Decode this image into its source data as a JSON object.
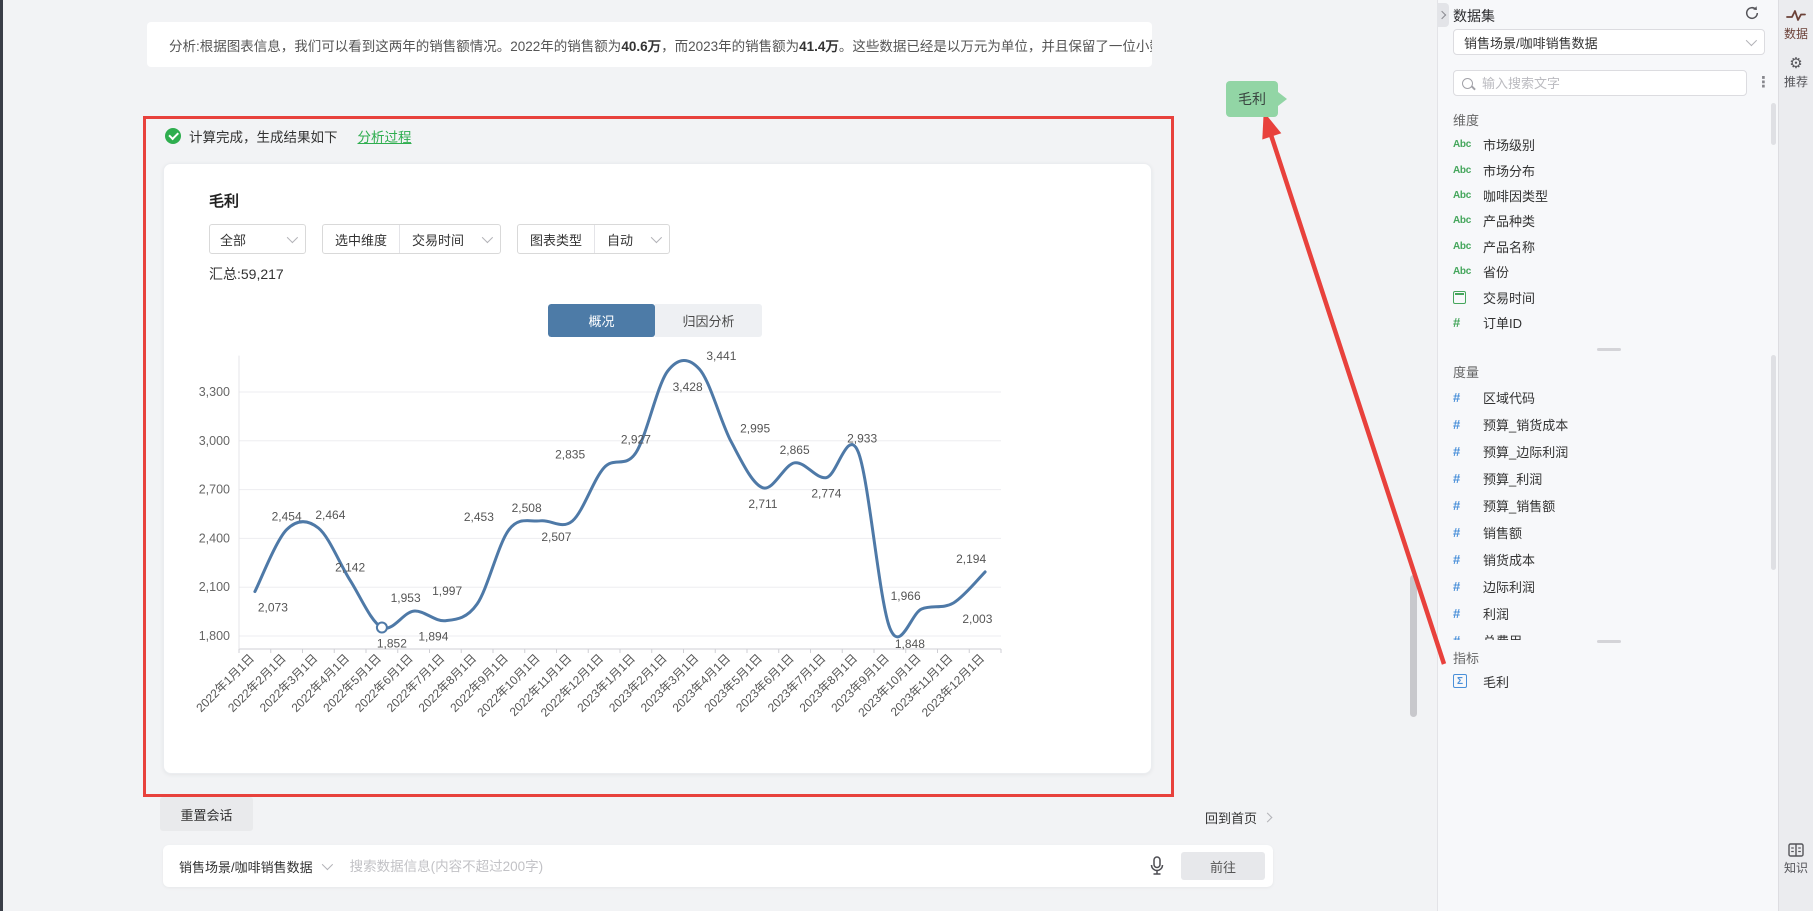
{
  "analysis": {
    "prefix": "分析: ",
    "t1": "根据图表信息，我们可以看到这两年的销售额情况。2022年的销售额为",
    "b1": "40.6万",
    "t2": "，而2023年的销售额为",
    "b2": "41.4万",
    "t3": "。这些数据已经是以万元为单位，并且保留了一位小数。"
  },
  "result": {
    "status": "计算完成，生成结果如下",
    "process_link": "分析过程",
    "title": "毛利",
    "filter_value": "全部",
    "dimension_label": "选中维度",
    "dimension_value": "交易时间",
    "chart_type_label": "图表类型",
    "chart_type_value": "自动",
    "summary": "汇总:59,217",
    "tabs": [
      "概况",
      "归因分析"
    ]
  },
  "chart_data": {
    "type": "line",
    "series_name": "毛利",
    "x": [
      "2022年1月1日",
      "2022年2月1日",
      "2022年3月1日",
      "2022年4月1日",
      "2022年5月1日",
      "2022年6月1日",
      "2022年7月1日",
      "2022年8月1日",
      "2022年9月1日",
      "2022年10月1日",
      "2022年11月1日",
      "2022年12月1日",
      "2023年1月1日",
      "2023年2月1日",
      "2023年3月1日",
      "2023年4月1日",
      "2023年5月1日",
      "2023年6月1日",
      "2023年7月1日",
      "2023年8月1日",
      "2023年9月1日",
      "2023年10月1日",
      "2023年11月1日",
      "2023年12月1日"
    ],
    "values": [
      2073,
      2454,
      2464,
      2142,
      1852,
      1953,
      1894,
      1997,
      2453,
      2508,
      2507,
      2835,
      2927,
      3428,
      3441,
      2995,
      2711,
      2865,
      2774,
      2933,
      1848,
      1966,
      2003,
      2194
    ],
    "total": 59217,
    "yticks": [
      1800,
      2100,
      2400,
      2700,
      3000,
      3300
    ],
    "ylim": [
      1800,
      3450
    ],
    "label_positions": [
      "below",
      "above",
      "above",
      "above",
      "below",
      "above",
      "below",
      "above",
      "above",
      "above",
      "below",
      "above",
      "above",
      "below",
      "above",
      "above",
      "below",
      "above",
      "below",
      "above",
      "below",
      "above",
      "below",
      "above"
    ],
    "label_dx": [
      18,
      0,
      12,
      0,
      10,
      -8,
      -12,
      -30,
      -30,
      -14,
      -16,
      -34,
      0,
      20,
      22,
      24,
      0,
      0,
      0,
      4,
      20,
      -16,
      24,
      -14
    ],
    "line_color": "#4e79a7",
    "highlighted_point_index": 4,
    "x_label_rotation": -45,
    "grid": true,
    "legend": false
  },
  "sidebar": {
    "title": "数据集",
    "dataset_value": "销售场景/咖啡销售数据",
    "search_placeholder": "输入搜索文字",
    "dimensions": {
      "title": "维度",
      "items": [
        {
          "icon": "abc",
          "label": "市场级别"
        },
        {
          "icon": "abc",
          "label": "市场分布"
        },
        {
          "icon": "abc",
          "label": "咖啡因类型"
        },
        {
          "icon": "abc",
          "label": "产品种类"
        },
        {
          "icon": "abc",
          "label": "产品名称"
        },
        {
          "icon": "abc",
          "label": "省份"
        },
        {
          "icon": "calendar",
          "label": "交易时间"
        },
        {
          "icon": "hash-green",
          "label": "订单ID"
        }
      ]
    },
    "measures": {
      "title": "度量",
      "items": [
        {
          "icon": "hash",
          "label": "区域代码"
        },
        {
          "icon": "hash",
          "label": "预算_销货成本"
        },
        {
          "icon": "hash",
          "label": "预算_边际利润"
        },
        {
          "icon": "hash",
          "label": "预算_利润"
        },
        {
          "icon": "hash",
          "label": "预算_销售额"
        },
        {
          "icon": "hash",
          "label": "销售额"
        },
        {
          "icon": "hash",
          "label": "销货成本"
        },
        {
          "icon": "hash",
          "label": "边际利润"
        },
        {
          "icon": "hash",
          "label": "利润"
        },
        {
          "icon": "hash",
          "label": "总费用"
        }
      ]
    },
    "metrics": {
      "title": "指标",
      "items": [
        {
          "icon": "sigma",
          "label": "毛利"
        }
      ]
    }
  },
  "rail": {
    "items": [
      {
        "icon": "pulse",
        "label": "数据"
      },
      {
        "icon": "gear",
        "label": "推荐"
      },
      {
        "icon": "grid",
        "label": "知识"
      }
    ]
  },
  "footer": {
    "reset": "重置会话",
    "home": "回到首页",
    "dataset_value": "销售场景/咖啡销售数据",
    "input_placeholder": "搜索数据信息(内容不超过200字)",
    "go": "前往"
  },
  "annotation": {
    "tooltip": "毛利"
  },
  "colors": {
    "accent_blue": "#4d7ba7",
    "line_blue": "#4e79a7",
    "green": "#2fae4f",
    "red": "#e8413c",
    "tooltip_green": "#92d5a5"
  }
}
